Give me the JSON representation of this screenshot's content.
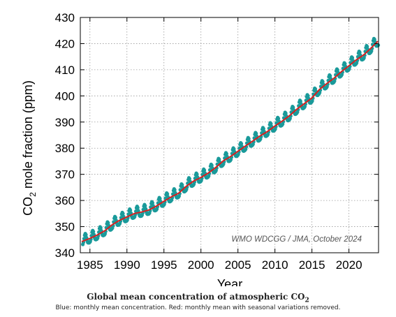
{
  "chart_data": {
    "type": "line",
    "ylabel_prefix": "CO",
    "ylabel_sub": "2",
    "ylabel_suffix": " mole fraction (ppm)",
    "xlabel": "Year",
    "xlim": [
      1983.7,
      2024.0
    ],
    "ylim": [
      340,
      430
    ],
    "xticks": [
      1985,
      1990,
      1995,
      2000,
      2005,
      2010,
      2015,
      2020
    ],
    "yticks": [
      340,
      350,
      360,
      370,
      380,
      390,
      400,
      410,
      420,
      430
    ],
    "grid": true,
    "annotation": "WMO WDCGG / JMA, October 2024",
    "series": [
      {
        "style": "monthly-points",
        "color": "#1a9a9a",
        "seasonal_amplitude_ppm": 4,
        "peak_month": 5
      },
      {
        "style": "line",
        "color": "#d62020",
        "x": [
          1983.9,
          1985,
          1986,
          1987,
          1988,
          1989,
          1990,
          1991,
          1992,
          1993,
          1994,
          1995,
          1996,
          1997,
          1998,
          1999,
          2000,
          2001,
          2002,
          2003,
          2004,
          2005,
          2006,
          2007,
          2008,
          2009,
          2010,
          2011,
          2012,
          2013,
          2014,
          2015,
          2016,
          2017,
          2018,
          2019,
          2020,
          2021,
          2022,
          2023,
          2023.9
        ],
        "y": [
          344.3,
          345.5,
          346.8,
          348.4,
          350.7,
          352.4,
          353.7,
          355.0,
          355.6,
          356.4,
          357.9,
          359.7,
          361.4,
          362.8,
          365.4,
          367.4,
          368.8,
          370.5,
          372.6,
          375.1,
          376.8,
          378.8,
          380.8,
          382.7,
          384.7,
          386.4,
          388.5,
          390.4,
          392.5,
          395.0,
          397.1,
          399.2,
          402.4,
          404.7,
          406.8,
          409.3,
          411.5,
          413.8,
          415.7,
          418.3,
          420.9
        ]
      }
    ]
  },
  "caption": {
    "title": "Global mean concentration of atmospheric CO",
    "title_sub": "2",
    "note": "Blue: monthly mean concentration. Red: monthly mean with seasonal variations removed."
  }
}
